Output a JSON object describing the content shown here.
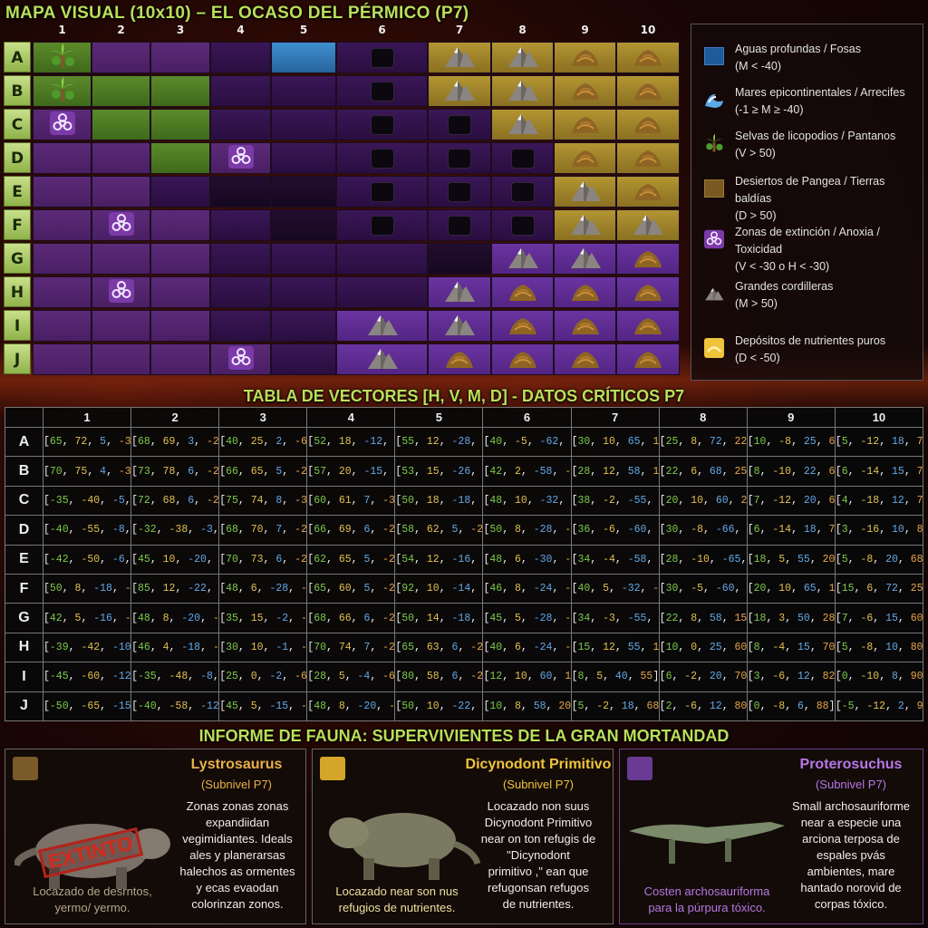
{
  "map": {
    "title": "MAPA VISUAL (10x10) – EL OCASO DEL PÉRMICO (P7)",
    "columns": [
      "1",
      "2",
      "3",
      "4",
      "5",
      "6",
      "7",
      "8",
      "9",
      "10"
    ],
    "rows": [
      "A",
      "B",
      "C",
      "D",
      "E",
      "F",
      "G",
      "H",
      "I",
      "J"
    ],
    "grid": [
      [
        "palm",
        "p",
        "p",
        "d",
        "water",
        "pit",
        "mtn",
        "mtn",
        "mound",
        "mound"
      ],
      [
        "palm",
        "g",
        "g",
        "d",
        "d",
        "pit",
        "mtn",
        "mtn",
        "mound",
        "mound"
      ],
      [
        "bio",
        "g",
        "g",
        "d",
        "d",
        "pit",
        "pit",
        "mtn",
        "mound",
        "mound"
      ],
      [
        "p",
        "p",
        "g",
        "bio",
        "d",
        "pit",
        "pit",
        "pit",
        "mound",
        "mound"
      ],
      [
        "p",
        "p",
        "d",
        "k",
        "k",
        "pit",
        "pit",
        "pit",
        "mtn",
        "mound"
      ],
      [
        "p",
        "bio",
        "p",
        "d",
        "k",
        "pit",
        "pit",
        "pit",
        "mtn",
        "mtn"
      ],
      [
        "p",
        "p",
        "p",
        "d",
        "d",
        "d",
        "k",
        "mtn",
        "mtn",
        "mound"
      ],
      [
        "p",
        "bio",
        "p",
        "d",
        "d",
        "d",
        "mtn",
        "mound",
        "mound",
        "mound"
      ],
      [
        "p",
        "p",
        "p",
        "d",
        "d",
        "mtn",
        "mtn",
        "mound",
        "mound",
        "mound"
      ],
      [
        "p",
        "p",
        "p",
        "bio",
        "d",
        "mtn",
        "mound",
        "mound",
        "mound",
        "mound"
      ]
    ]
  },
  "legend": [
    {
      "icon": "water-swatch",
      "line1": "Aguas profundas / Fosas",
      "line2": "(M < -40)"
    },
    {
      "icon": "wave-icon",
      "line1": "Mares epicontinentales / Arrecifes",
      "line2": "(-1 ≥ M ≥ -40)"
    },
    {
      "icon": "palm-icon",
      "line1": "Selvas de licopodios / Pantanos",
      "line2": "(V > 50)"
    },
    {
      "icon": "desert-swatch",
      "line1": "Desiertos de Pangea / Tierras baldías",
      "line2": "(D > 50)"
    },
    {
      "icon": "biohazard-icon",
      "line1": "Zonas de extinción / Anoxia / Toxicidad",
      "line2": "(V < -30 o H < -30)"
    },
    {
      "icon": "mountain-icon",
      "line1": "Grandes cordilleras",
      "line2": "(M > 50)"
    },
    {
      "icon": "nutrient-icon",
      "line1": "Depósitos de nutrientes puros",
      "line2": "(D < -50)"
    }
  ],
  "table": {
    "title": "TABLA DE VECTORES [H, V, M, D] - DATOS CRÍTICOS P7",
    "columns": [
      "1",
      "2",
      "3",
      "4",
      "5",
      "6",
      "7",
      "8",
      "9",
      "10"
    ],
    "rows": [
      {
        "label": "A",
        "cells": [
          [
            65,
            72,
            5,
            -35
          ],
          [
            68,
            69,
            3,
            -28
          ],
          [
            40,
            25,
            2,
            -63
          ],
          [
            52,
            18,
            -12,
            -20
          ],
          [
            55,
            12,
            -28,
            -18
          ],
          [
            40,
            -5,
            -62,
            -10
          ],
          [
            30,
            10,
            65,
            15
          ],
          [
            25,
            8,
            72,
            22
          ],
          [
            10,
            -8,
            25,
            65
          ],
          [
            5,
            -12,
            18,
            71
          ]
        ]
      },
      {
        "label": "B",
        "cells": [
          [
            70,
            75,
            4,
            -31
          ],
          [
            73,
            78,
            6,
            -29
          ],
          [
            66,
            65,
            5,
            -24
          ],
          [
            57,
            20,
            -15,
            -12
          ],
          [
            53,
            15,
            -26,
            -17
          ],
          [
            42,
            2,
            -58,
            -12
          ],
          [
            28,
            12,
            58,
            16
          ],
          [
            22,
            6,
            68,
            25
          ],
          [
            8,
            -10,
            22,
            68
          ],
          [
            6,
            -14,
            15,
            74
          ]
        ]
      },
      {
        "label": "C",
        "cells": [
          [
            -35,
            -40,
            -5,
            5
          ],
          [
            72,
            68,
            6,
            -27
          ],
          [
            75,
            74,
            8,
            -30
          ],
          [
            60,
            61,
            7,
            -33
          ],
          [
            50,
            18,
            -18,
            -14
          ],
          [
            48,
            10,
            -32,
            -10
          ],
          [
            38,
            -2,
            -55,
            -8
          ],
          [
            20,
            10,
            60,
            20
          ],
          [
            7,
            -12,
            20,
            66
          ],
          [
            4,
            -18,
            12,
            79
          ]
        ]
      },
      {
        "label": "D",
        "cells": [
          [
            -40,
            -55,
            -8,
            12
          ],
          [
            -32,
            -38,
            -3,
            8
          ],
          [
            68,
            70,
            7,
            -26
          ],
          [
            66,
            69,
            6,
            -25
          ],
          [
            58,
            62,
            5,
            -24
          ],
          [
            50,
            8,
            -28,
            -8
          ],
          [
            36,
            -6,
            -60,
            -6
          ],
          [
            30,
            -8,
            -66,
            0
          ],
          [
            6,
            -14,
            18,
            72
          ],
          [
            3,
            -16,
            10,
            82
          ]
        ]
      },
      {
        "label": "E",
        "cells": [
          [
            -42,
            -50,
            -6,
            10
          ],
          [
            45,
            10,
            -20,
            -8
          ],
          [
            70,
            73,
            6,
            -25
          ],
          [
            62,
            65,
            5,
            -24
          ],
          [
            54,
            12,
            -16,
            -12
          ],
          [
            48,
            6,
            -30,
            -8
          ],
          [
            34,
            -4,
            -58,
            -5
          ],
          [
            28,
            -10,
            -65,
            -2
          ],
          [
            18,
            5,
            55,
            20
          ],
          [
            5,
            -8,
            20,
            68
          ]
        ]
      },
      {
        "label": "F",
        "cells": [
          [
            50,
            8,
            -18,
            -6
          ],
          [
            85,
            12,
            -22,
            -8
          ],
          [
            48,
            6,
            -28,
            -5
          ],
          [
            65,
            60,
            5,
            -22
          ],
          [
            92,
            10,
            -14,
            -10
          ],
          [
            46,
            8,
            -24,
            -6
          ],
          [
            40,
            5,
            -32,
            -4
          ],
          [
            30,
            -5,
            -60,
            -1
          ],
          [
            20,
            10,
            65,
            18
          ],
          [
            15,
            6,
            72,
            25
          ]
        ]
      },
      {
        "label": "G",
        "cells": [
          [
            42,
            5,
            -16,
            -4
          ],
          [
            48,
            8,
            -20,
            -5
          ],
          [
            35,
            15,
            -2,
            -58
          ],
          [
            68,
            66,
            6,
            -26
          ],
          [
            50,
            14,
            -18,
            -10
          ],
          [
            45,
            5,
            -28,
            -6
          ],
          [
            34,
            -3,
            -55,
            -4
          ],
          [
            22,
            8,
            58,
            15
          ],
          [
            18,
            3,
            50,
            28
          ],
          [
            7,
            -6,
            15,
            60
          ]
        ]
      },
      {
        "label": "H",
        "cells": [
          [
            -39,
            -42,
            -10,
            8
          ],
          [
            46,
            4,
            -18,
            -6
          ],
          [
            30,
            10,
            -1,
            -60
          ],
          [
            70,
            74,
            7,
            -27
          ],
          [
            65,
            63,
            6,
            -24
          ],
          [
            40,
            6,
            -24,
            -6
          ],
          [
            15,
            12,
            55,
            15
          ],
          [
            10,
            0,
            25,
            60
          ],
          [
            8,
            -4,
            15,
            70
          ],
          [
            5,
            -8,
            10,
            80
          ]
        ]
      },
      {
        "label": "I",
        "cells": [
          [
            -45,
            -60,
            -12,
            12
          ],
          [
            -35,
            -48,
            -8,
            10
          ],
          [
            25,
            0,
            -2,
            -65
          ],
          [
            28,
            5,
            -4,
            -68
          ],
          [
            80,
            58,
            6,
            -22
          ],
          [
            12,
            10,
            60,
            18
          ],
          [
            8,
            5,
            40,
            55
          ],
          [
            6,
            -2,
            20,
            70
          ],
          [
            3,
            -6,
            12,
            82
          ],
          [
            0,
            -10,
            8,
            90
          ]
        ]
      },
      {
        "label": "J",
        "cells": [
          [
            -50,
            -65,
            -15,
            15
          ],
          [
            -40,
            -58,
            -12,
            12
          ],
          [
            45,
            5,
            -15,
            -10
          ],
          [
            48,
            8,
            -20,
            -8
          ],
          [
            50,
            10,
            -22,
            -6
          ],
          [
            10,
            8,
            58,
            20
          ],
          [
            5,
            -2,
            18,
            68
          ],
          [
            2,
            -6,
            12,
            80
          ],
          [
            0,
            -8,
            6,
            88
          ],
          [
            -5,
            -12,
            2,
            95
          ]
        ]
      }
    ]
  },
  "fauna": {
    "title": "INFORME DE FAUNA: SUPERVIVIENTES DE LA GRAN MORTANDAD",
    "cards": [
      {
        "name": "Lystrosaurus",
        "sub": "(Subnivel P7)",
        "stamp": "EXTINTO",
        "desc": [
          "Zonas zonas zonas",
          "expandiidan",
          "vegimidiantes. Ideals",
          "ales y planerarsas",
          "halechos as ormentes",
          "y ecas evaodan",
          "colorinzan zonos."
        ],
        "note": [
          "Locazado de desrntos,",
          "yermo/ yermo."
        ],
        "accent": "#e8b04a"
      },
      {
        "name": "Dicynodont Primitivo",
        "sub": "(Subnivel P7)",
        "desc": [
          "Locazado non suus",
          "Dicynodont Primitivo",
          "near on ton refugis de",
          "\"Dicynodont",
          "primitivo ,\" ean que",
          "refugonsan refugos",
          "de nutrientes."
        ],
        "note": [
          "Locazado near son nus",
          "refugios de nutrientes."
        ],
        "accent": "#f0c43a"
      },
      {
        "name": "Proterosuchus",
        "sub": "(Subnivel P7)",
        "desc": [
          "Small archosauriforme",
          "near a especie una",
          "arciona terposa de",
          "espales pvás",
          "ambientes, mare",
          "hantado norovid de",
          "corpas tóxico."
        ],
        "note": [
          "Costen archosauriforma",
          "para la púrpura tóxico."
        ],
        "accent": "#b777e6"
      }
    ]
  }
}
